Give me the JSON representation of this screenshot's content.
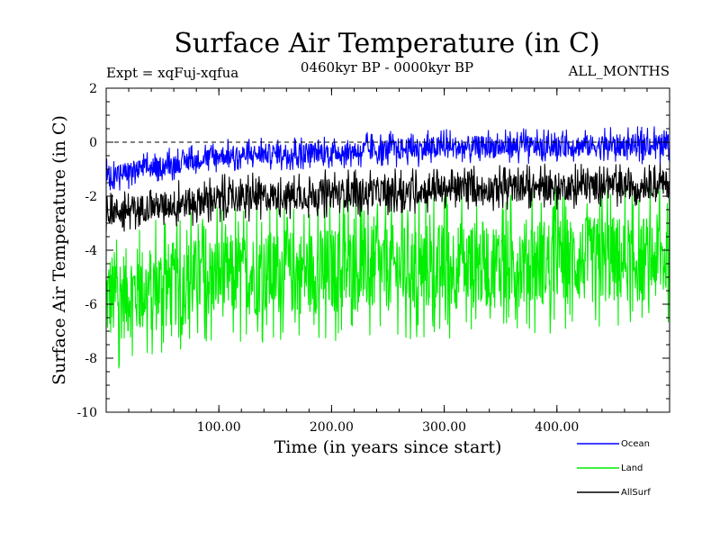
{
  "chart_data": {
    "type": "line",
    "title": "Surface Air Temperature (in C)",
    "experiment": "Expt = xqFuj-xqfua",
    "period": "0460kyr BP - 0000kyr BP",
    "months": "ALL_MONTHS",
    "xlabel": "Time (in years since start)",
    "ylabel": "Surface Air Temperature (in C)",
    "xlim": [
      0,
      500
    ],
    "ylim": [
      -10,
      2
    ],
    "x_ticks": [
      100,
      200,
      300,
      400
    ],
    "x_tick_labels": [
      "100.00",
      "200.00",
      "300.00",
      "400.00"
    ],
    "y_ticks": [
      -10,
      -8,
      -6,
      -4,
      -2,
      0,
      2
    ],
    "y_tick_labels": [
      "-10",
      "-8",
      "-6",
      "-4",
      "-2",
      "0",
      "2"
    ],
    "reference_line": 0,
    "series": [
      {
        "name": "Land",
        "color": "#00ee00",
        "trend_x": [
          0,
          100,
          200,
          300,
          400,
          500
        ],
        "trend_min": [
          -8.6,
          -7.5,
          -7.4,
          -7.3,
          -7.1,
          -7.0
        ],
        "trend_max": [
          -2.9,
          -2.4,
          -2.1,
          -1.9,
          -1.7,
          -1.6
        ]
      },
      {
        "name": "AllSurf",
        "color": "#000000",
        "trend_x": [
          0,
          100,
          200,
          300,
          400,
          500
        ],
        "trend_min": [
          -3.4,
          -3.0,
          -2.8,
          -2.6,
          -2.5,
          -2.4
        ],
        "trend_max": [
          -1.8,
          -1.2,
          -1.0,
          -0.9,
          -0.8,
          -0.7
        ]
      },
      {
        "name": "Ocean",
        "color": "#0000ff",
        "trend_x": [
          0,
          100,
          200,
          300,
          400,
          500
        ],
        "trend_min": [
          -1.9,
          -1.1,
          -1.0,
          -0.9,
          -0.8,
          -0.8
        ],
        "trend_max": [
          -0.6,
          0.1,
          0.3,
          0.5,
          0.5,
          0.6
        ]
      }
    ],
    "legend": [
      {
        "name": "Ocean",
        "color": "#0000ff"
      },
      {
        "name": "Land",
        "color": "#00ee00"
      },
      {
        "name": "AllSurf",
        "color": "#000000"
      }
    ]
  }
}
